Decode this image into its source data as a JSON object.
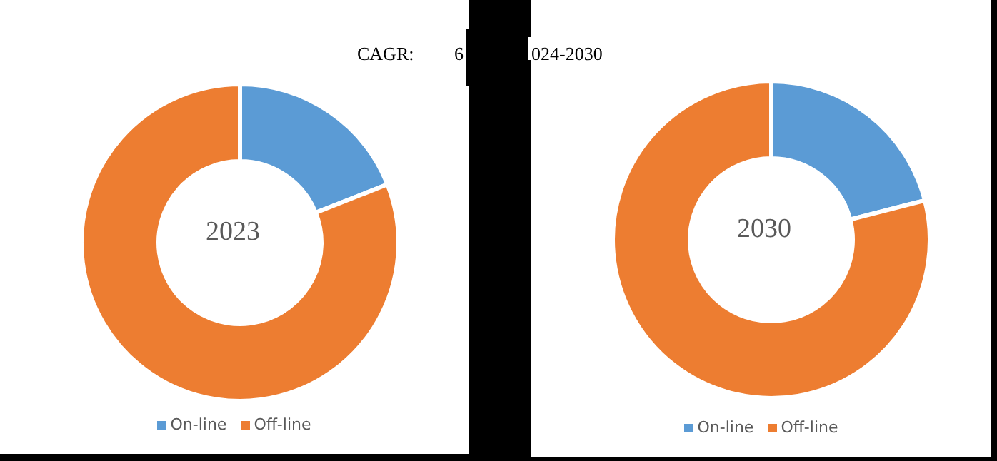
{
  "chart_data": [
    {
      "type": "donut",
      "title": "2023",
      "categories": [
        "On-line",
        "Off-line"
      ],
      "values": [
        19,
        81
      ],
      "colors": [
        "#5b9bd5",
        "#ed7d31"
      ],
      "legend": "bottom",
      "annotations": [
        "CAGR:",
        "6",
        "024-2030"
      ]
    },
    {
      "type": "donut",
      "title": "2030",
      "categories": [
        "On-line",
        "Off-line"
      ],
      "values": [
        21,
        79
      ],
      "colors": [
        "#5b9bd5",
        "#ed7d31"
      ],
      "legend": "bottom"
    }
  ]
}
